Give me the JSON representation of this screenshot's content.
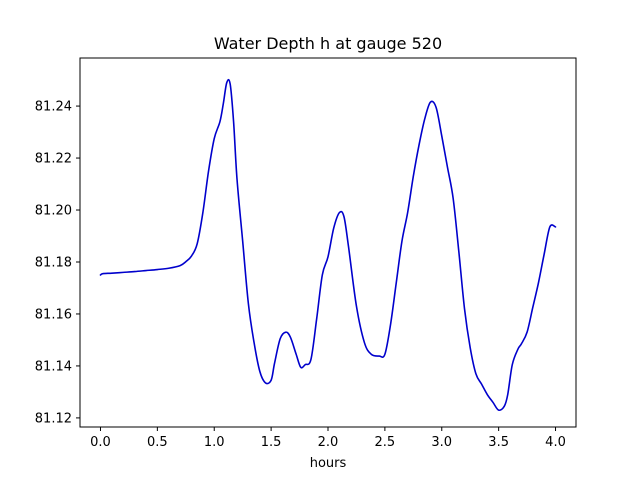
{
  "chart_data": {
    "type": "line",
    "title": "Water Depth h at gauge 520",
    "xlabel": "hours",
    "ylabel": "",
    "xlim": [
      -0.18,
      4.18
    ],
    "ylim": [
      81.1165,
      81.2585
    ],
    "xticks": [
      0.0,
      0.5,
      1.0,
      1.5,
      2.0,
      2.5,
      3.0,
      3.5,
      4.0
    ],
    "xtick_labels": [
      "0.0",
      "0.5",
      "1.0",
      "1.5",
      "2.0",
      "2.5",
      "3.0",
      "3.5",
      "4.0"
    ],
    "yticks": [
      81.12,
      81.14,
      81.16,
      81.18,
      81.2,
      81.22,
      81.24
    ],
    "ytick_labels": [
      "81.12",
      "81.14",
      "81.16",
      "81.18",
      "81.20",
      "81.22",
      "81.24"
    ],
    "grid": false,
    "line_color": "#0000cc",
    "series": [
      {
        "name": "",
        "x": [
          0.0,
          0.02,
          0.1,
          0.2,
          0.3,
          0.4,
          0.5,
          0.6,
          0.7,
          0.75,
          0.8,
          0.85,
          0.9,
          0.95,
          1.0,
          1.05,
          1.08,
          1.11,
          1.14,
          1.17,
          1.2,
          1.25,
          1.3,
          1.35,
          1.4,
          1.45,
          1.5,
          1.53,
          1.58,
          1.63,
          1.67,
          1.72,
          1.76,
          1.8,
          1.85,
          1.9,
          1.95,
          2.0,
          2.05,
          2.1,
          2.14,
          2.18,
          2.25,
          2.32,
          2.38,
          2.45,
          2.5,
          2.55,
          2.6,
          2.65,
          2.7,
          2.75,
          2.8,
          2.85,
          2.9,
          2.95,
          3.0,
          3.05,
          3.1,
          3.15,
          3.2,
          3.25,
          3.3,
          3.35,
          3.4,
          3.45,
          3.5,
          3.55,
          3.58,
          3.62,
          3.67,
          3.7,
          3.75,
          3.8,
          3.85,
          3.9,
          3.95,
          4.0
        ],
        "y": [
          81.175,
          81.1755,
          81.1757,
          81.176,
          81.1763,
          81.1767,
          81.1771,
          81.1776,
          81.1786,
          81.1801,
          81.1823,
          81.187,
          81.199,
          81.215,
          81.2275,
          81.234,
          81.241,
          81.249,
          81.2485,
          81.234,
          81.212,
          81.188,
          81.164,
          81.149,
          81.138,
          81.1335,
          81.1345,
          81.141,
          81.1505,
          81.153,
          81.151,
          81.1445,
          81.1395,
          81.1405,
          81.1425,
          81.158,
          81.175,
          81.182,
          81.193,
          81.199,
          81.1975,
          81.186,
          81.163,
          81.149,
          81.1445,
          81.1438,
          81.1445,
          81.156,
          81.172,
          81.188,
          81.199,
          81.213,
          81.225,
          81.235,
          81.2415,
          81.2395,
          81.2285,
          81.2165,
          81.2045,
          81.184,
          81.162,
          81.147,
          81.137,
          81.133,
          81.129,
          81.126,
          81.123,
          81.1245,
          81.129,
          81.1405,
          81.1465,
          81.1485,
          81.153,
          81.1625,
          81.172,
          81.183,
          81.1935,
          81.1935
        ]
      }
    ]
  }
}
